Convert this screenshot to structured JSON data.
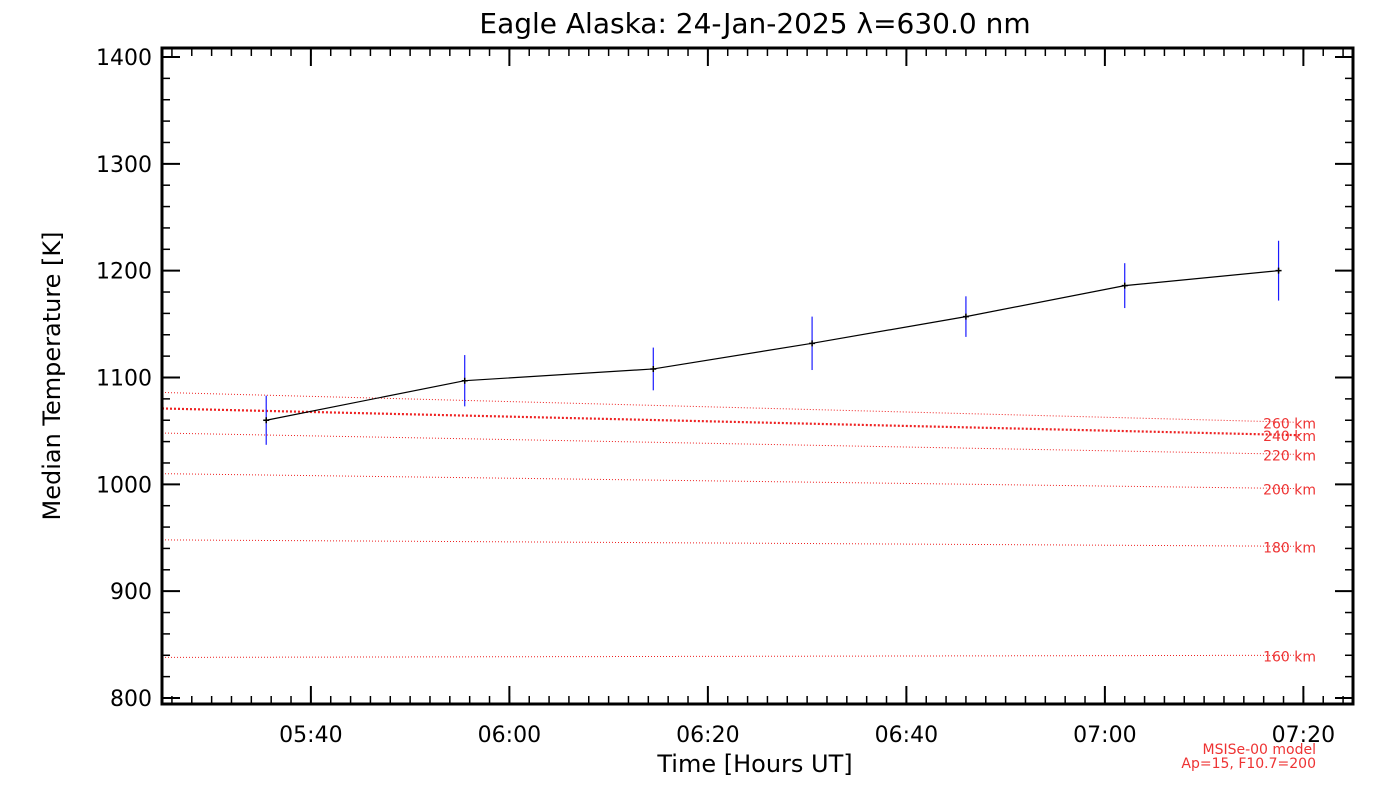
{
  "colors": {
    "axis": "#000000",
    "data_line": "#000000",
    "error_bar": "#1a1aff",
    "model": "#ee2222"
  },
  "chart_data": {
    "type": "line",
    "title": "Eagle Alaska: 24-Jan-2025 λ=630.0 nm",
    "xlabel": "Time [Hours UT]",
    "ylabel": "Median Temperature [K]",
    "xlim_minutes": [
      325,
      445
    ],
    "ylim": [
      800,
      1400
    ],
    "x_ticks": [
      {
        "minutes": 340,
        "label": "05:40"
      },
      {
        "minutes": 360,
        "label": "06:00"
      },
      {
        "minutes": 380,
        "label": "06:20"
      },
      {
        "minutes": 400,
        "label": "06:40"
      },
      {
        "minutes": 420,
        "label": "07:00"
      },
      {
        "minutes": 440,
        "label": "07:20"
      }
    ],
    "y_ticks": [
      800,
      900,
      1000,
      1100,
      1200,
      1300,
      1400
    ],
    "series": [
      {
        "name": "Median Temperature",
        "points": [
          {
            "time": "05:35.5",
            "minutes": 335.5,
            "value": 1060,
            "err": 23
          },
          {
            "time": "05:55.5",
            "minutes": 355.5,
            "value": 1097,
            "err": 24
          },
          {
            "time": "06:14.5",
            "minutes": 374.5,
            "value": 1108,
            "err": 20
          },
          {
            "time": "06:30.5",
            "minutes": 390.5,
            "value": 1132,
            "err": 25
          },
          {
            "time": "06:46",
            "minutes": 406.0,
            "value": 1157,
            "err": 19
          },
          {
            "time": "07:02",
            "minutes": 422.0,
            "value": 1186,
            "err": 21
          },
          {
            "time": "07:17.5",
            "minutes": 437.5,
            "value": 1200,
            "err": 28
          }
        ]
      }
    ],
    "model_lines": [
      {
        "label": "160 km",
        "start": 838,
        "end": 840,
        "highlight": false
      },
      {
        "label": "180 km",
        "start": 948,
        "end": 942,
        "highlight": false
      },
      {
        "label": "200 km",
        "start": 1010,
        "end": 996,
        "highlight": false
      },
      {
        "label": "220 km",
        "start": 1048,
        "end": 1028,
        "highlight": false
      },
      {
        "label": "240 km",
        "start": 1071,
        "end": 1046,
        "highlight": true
      },
      {
        "label": "260 km",
        "start": 1086,
        "end": 1058,
        "highlight": false
      }
    ],
    "annotations": [
      "MSISe-00 model",
      "Ap=15, F10.7=200"
    ]
  }
}
